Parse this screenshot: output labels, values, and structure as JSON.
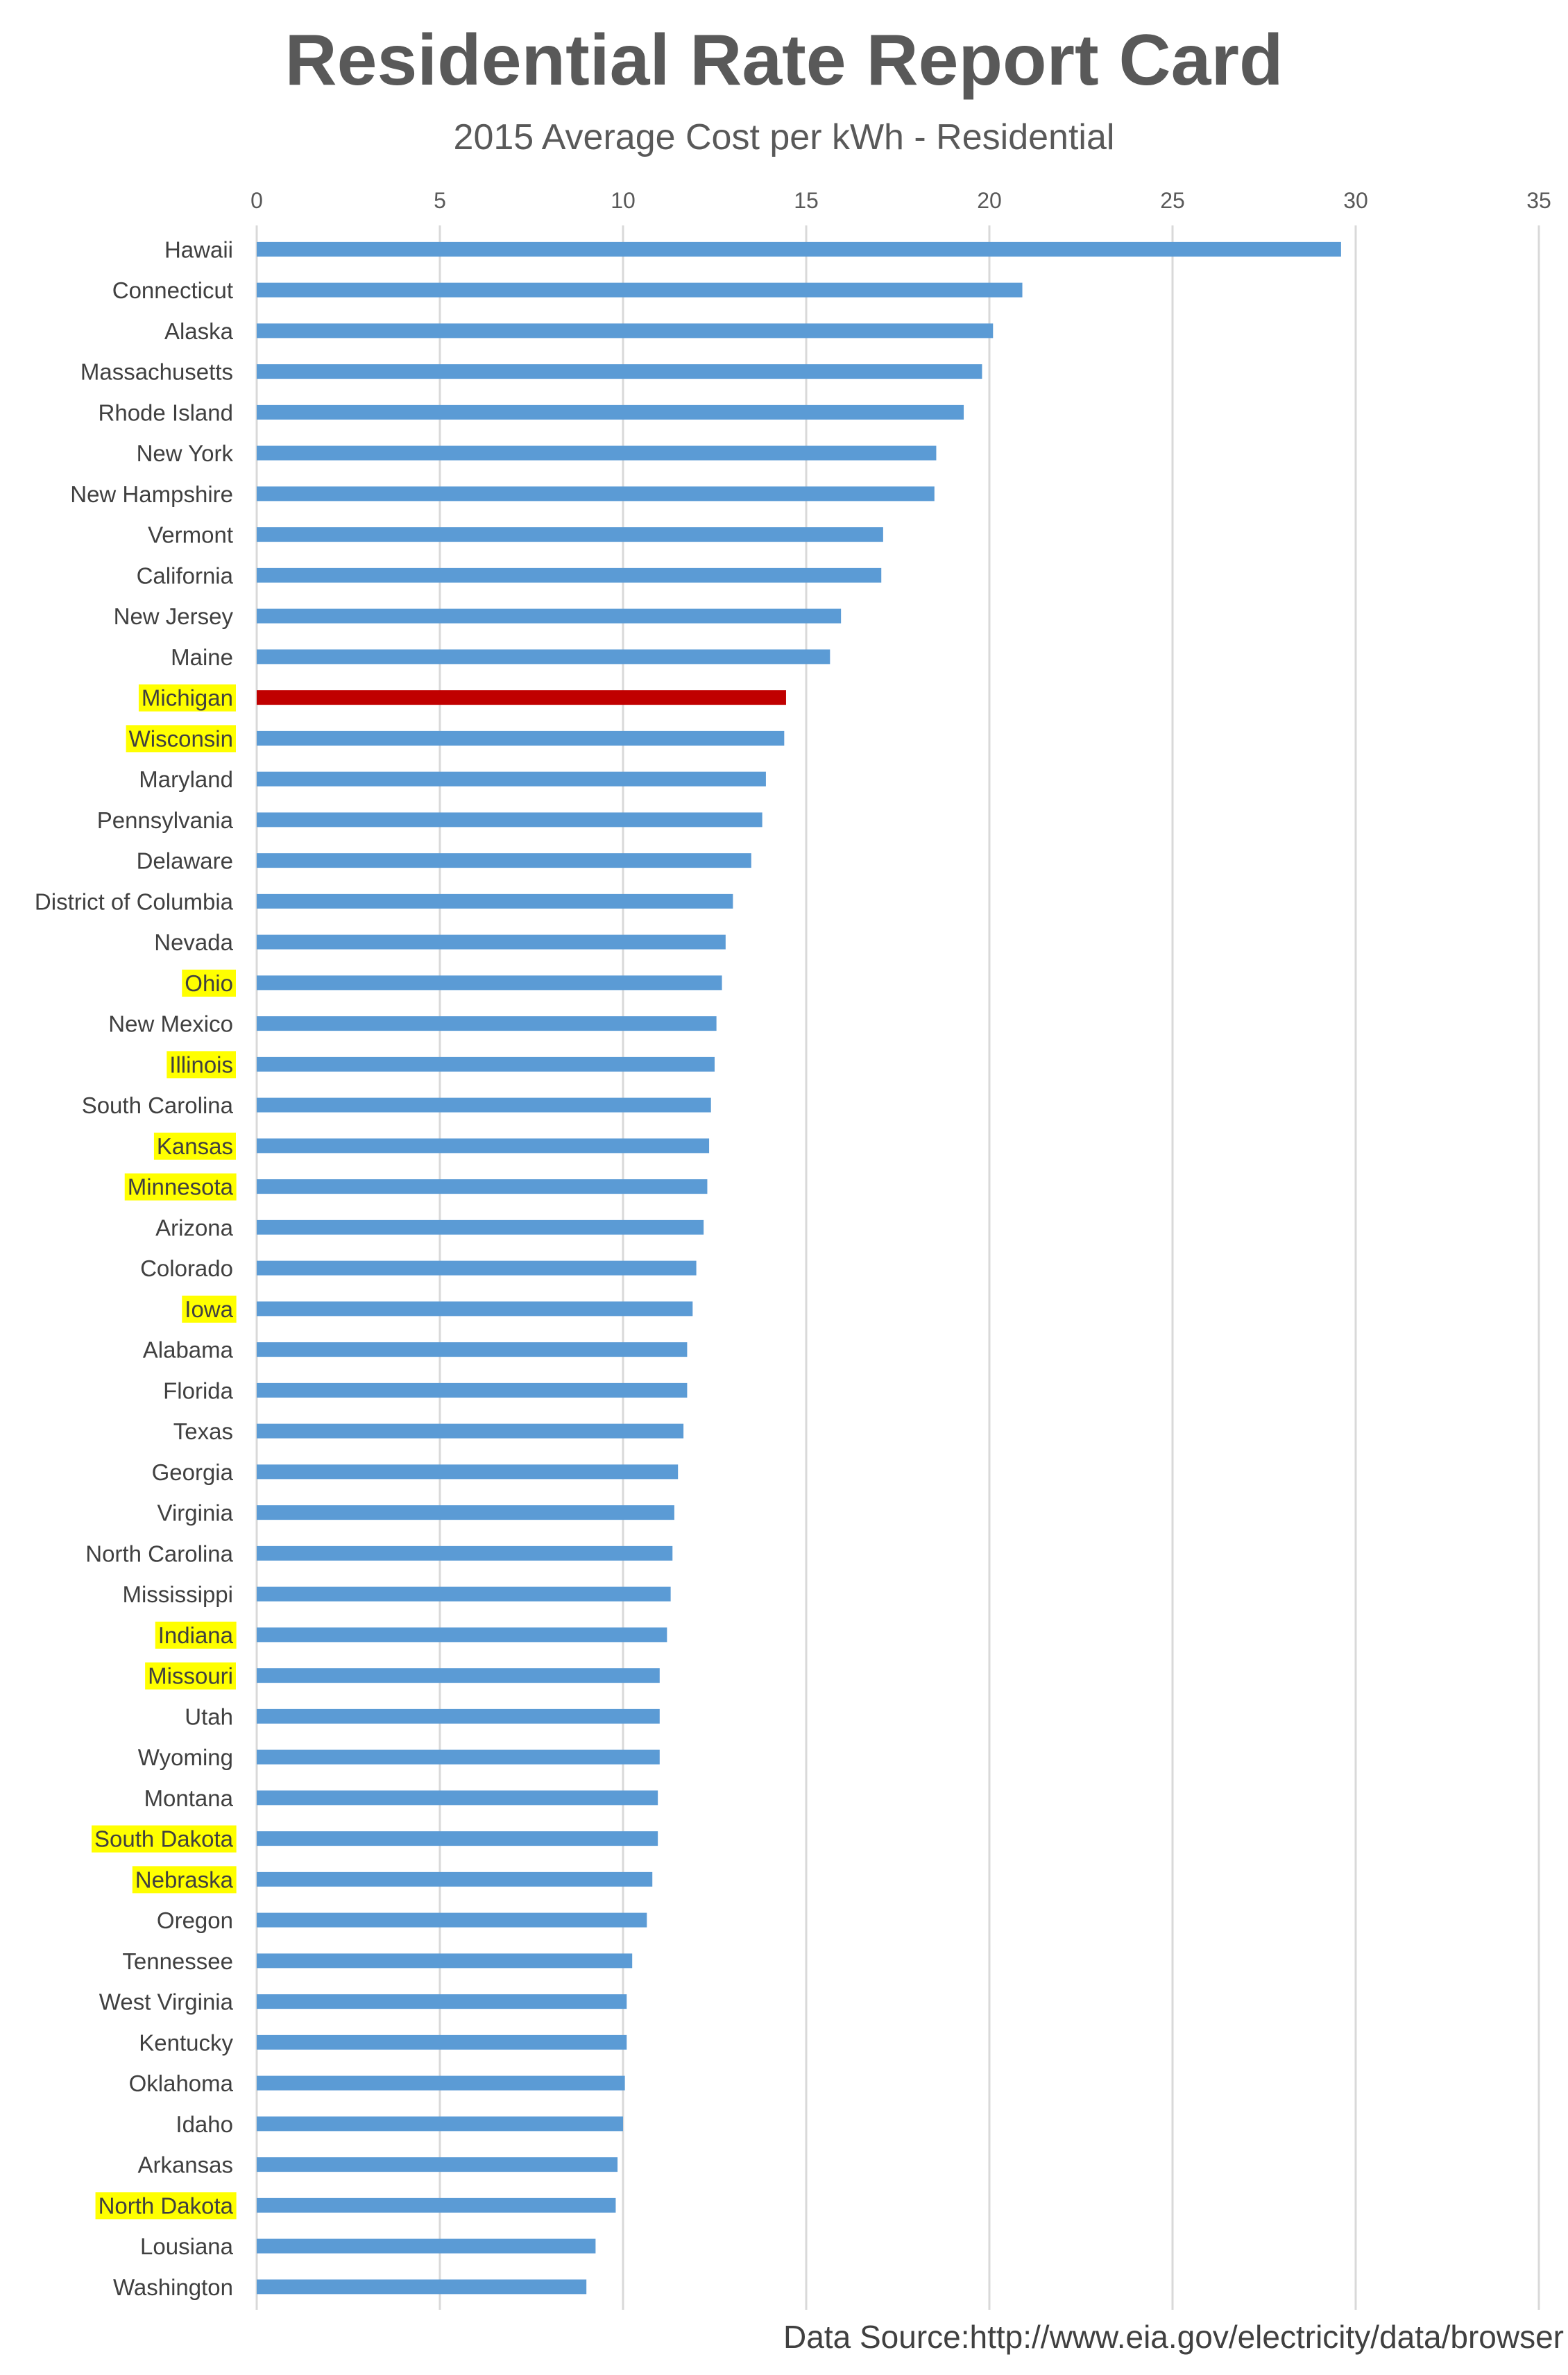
{
  "chart_data": {
    "type": "bar",
    "orientation": "horizontal",
    "title": "Residential Rate Report Card",
    "subtitle": "2015 Average Cost per kWh  - Residential",
    "xlabel": "",
    "ylabel": "",
    "xlim": [
      0,
      35
    ],
    "xticks": [
      0,
      5,
      10,
      15,
      20,
      25,
      30,
      35
    ],
    "grid": true,
    "axis_position": "top",
    "bar_color": "#5B9BD5",
    "focus_color": "#C00000",
    "label_highlight_color": "#FFFF00",
    "bars": [
      {
        "label": "Hawaii",
        "value": 29.6,
        "highlight": false,
        "focus": false
      },
      {
        "label": "Connecticut",
        "value": 20.9,
        "highlight": false,
        "focus": false
      },
      {
        "label": "Alaska",
        "value": 20.1,
        "highlight": false,
        "focus": false
      },
      {
        "label": "Massachusetts",
        "value": 19.8,
        "highlight": false,
        "focus": false
      },
      {
        "label": "Rhode Island",
        "value": 19.3,
        "highlight": false,
        "focus": false
      },
      {
        "label": "New York",
        "value": 18.55,
        "highlight": false,
        "focus": false
      },
      {
        "label": "New Hampshire",
        "value": 18.5,
        "highlight": false,
        "focus": false
      },
      {
        "label": "Vermont",
        "value": 17.1,
        "highlight": false,
        "focus": false
      },
      {
        "label": "California",
        "value": 17.05,
        "highlight": false,
        "focus": false
      },
      {
        "label": "New Jersey",
        "value": 15.95,
        "highlight": false,
        "focus": false
      },
      {
        "label": "Maine",
        "value": 15.65,
        "highlight": false,
        "focus": false
      },
      {
        "label": "Michigan",
        "value": 14.45,
        "highlight": true,
        "focus": true
      },
      {
        "label": "Wisconsin",
        "value": 14.4,
        "highlight": true,
        "focus": false
      },
      {
        "label": "Maryland",
        "value": 13.9,
        "highlight": false,
        "focus": false
      },
      {
        "label": "Pennsylvania",
        "value": 13.8,
        "highlight": false,
        "focus": false
      },
      {
        "label": "Delaware",
        "value": 13.5,
        "highlight": false,
        "focus": false
      },
      {
        "label": "District of Columbia",
        "value": 13.0,
        "highlight": false,
        "focus": false
      },
      {
        "label": "Nevada",
        "value": 12.8,
        "highlight": false,
        "focus": false
      },
      {
        "label": "Ohio",
        "value": 12.7,
        "highlight": true,
        "focus": false
      },
      {
        "label": "New Mexico",
        "value": 12.55,
        "highlight": false,
        "focus": false
      },
      {
        "label": "Illinois",
        "value": 12.5,
        "highlight": true,
        "focus": false
      },
      {
        "label": "South Carolina",
        "value": 12.4,
        "highlight": false,
        "focus": false
      },
      {
        "label": "Kansas",
        "value": 12.35,
        "highlight": true,
        "focus": false
      },
      {
        "label": "Minnesota",
        "value": 12.3,
        "highlight": true,
        "focus": false
      },
      {
        "label": "Arizona",
        "value": 12.2,
        "highlight": false,
        "focus": false
      },
      {
        "label": "Colorado",
        "value": 12.0,
        "highlight": false,
        "focus": false
      },
      {
        "label": "Iowa",
        "value": 11.9,
        "highlight": true,
        "focus": false
      },
      {
        "label": "Alabama",
        "value": 11.75,
        "highlight": false,
        "focus": false
      },
      {
        "label": "Florida",
        "value": 11.75,
        "highlight": false,
        "focus": false
      },
      {
        "label": "Texas",
        "value": 11.65,
        "highlight": false,
        "focus": false
      },
      {
        "label": "Georgia",
        "value": 11.5,
        "highlight": false,
        "focus": false
      },
      {
        "label": "Virginia",
        "value": 11.4,
        "highlight": false,
        "focus": false
      },
      {
        "label": "North Carolina",
        "value": 11.35,
        "highlight": false,
        "focus": false
      },
      {
        "label": "Mississippi",
        "value": 11.3,
        "highlight": false,
        "focus": false
      },
      {
        "label": "Indiana",
        "value": 11.2,
        "highlight": true,
        "focus": false
      },
      {
        "label": "Missouri",
        "value": 11.0,
        "highlight": true,
        "focus": false
      },
      {
        "label": "Utah",
        "value": 11.0,
        "highlight": false,
        "focus": false
      },
      {
        "label": "Wyoming",
        "value": 11.0,
        "highlight": false,
        "focus": false
      },
      {
        "label": "Montana",
        "value": 10.95,
        "highlight": false,
        "focus": false
      },
      {
        "label": "South Dakota",
        "value": 10.95,
        "highlight": true,
        "focus": false
      },
      {
        "label": "Nebraska",
        "value": 10.8,
        "highlight": true,
        "focus": false
      },
      {
        "label": "Oregon",
        "value": 10.65,
        "highlight": false,
        "focus": false
      },
      {
        "label": "Tennessee",
        "value": 10.25,
        "highlight": false,
        "focus": false
      },
      {
        "label": "West Virginia",
        "value": 10.1,
        "highlight": false,
        "focus": false
      },
      {
        "label": "Kentucky",
        "value": 10.1,
        "highlight": false,
        "focus": false
      },
      {
        "label": "Oklahoma",
        "value": 10.05,
        "highlight": false,
        "focus": false
      },
      {
        "label": "Idaho",
        "value": 10.0,
        "highlight": false,
        "focus": false
      },
      {
        "label": "Arkansas",
        "value": 9.85,
        "highlight": false,
        "focus": false
      },
      {
        "label": "North Dakota",
        "value": 9.8,
        "highlight": true,
        "focus": false
      },
      {
        "label": "Lousiana",
        "value": 9.25,
        "highlight": false,
        "focus": false
      },
      {
        "label": "Washington",
        "value": 9.0,
        "highlight": false,
        "focus": false
      }
    ]
  },
  "source": {
    "label": "Data Source:",
    "url": "http://www.eia.gov/electricity/data/browser"
  }
}
